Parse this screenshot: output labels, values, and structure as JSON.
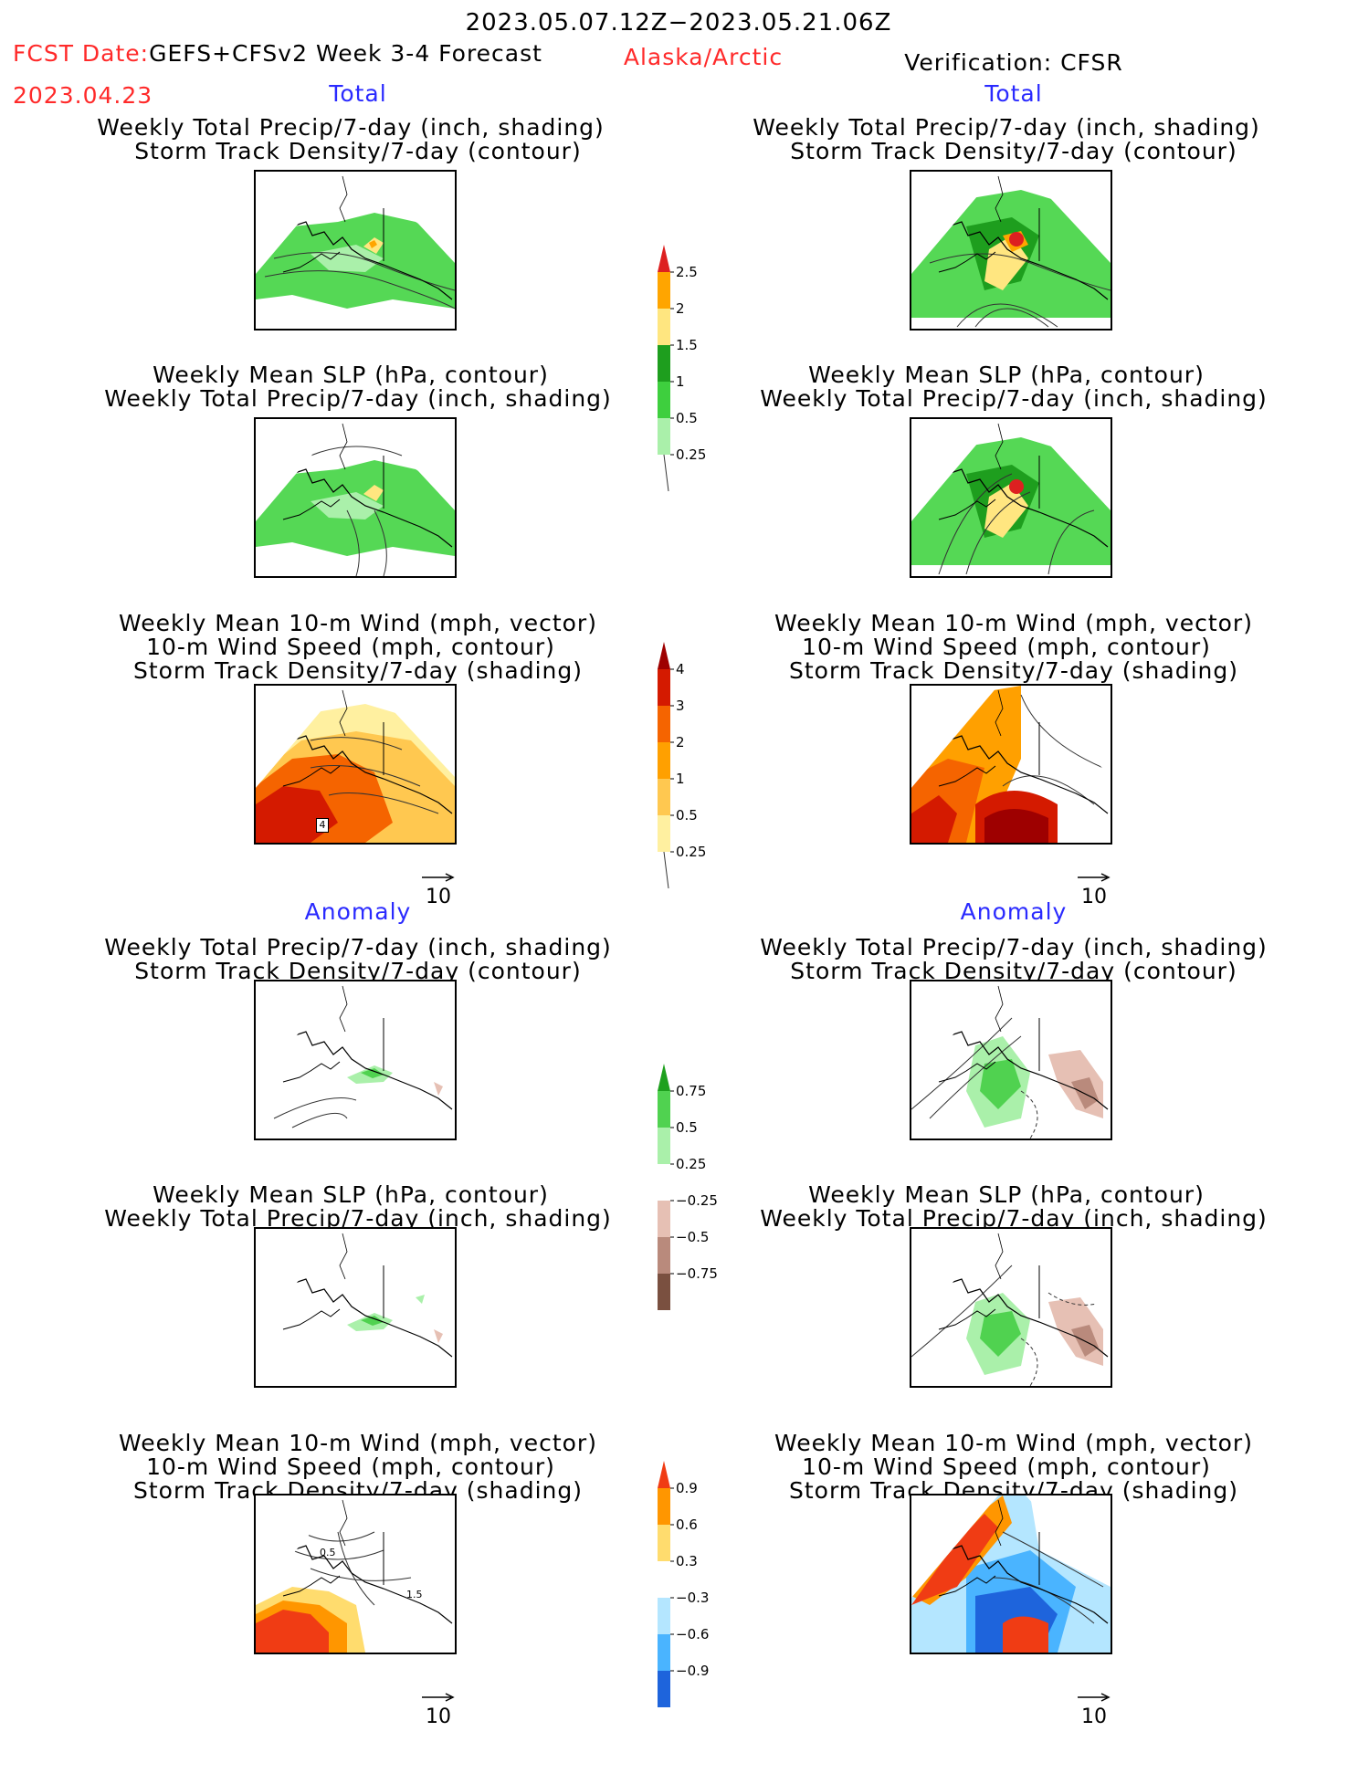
{
  "header": {
    "period": "2023.05.07.12Z−2023.05.21.06Z",
    "fcst_label": "FCST Date:",
    "fcst_model": "GEFS+CFSv2 Week 3-4 Forecast",
    "fcst_date": "2023.04.23",
    "region": "Alaska/Arctic",
    "verification": "Verification: CFSR"
  },
  "sections": {
    "total": "Total",
    "anomaly": "Anomaly"
  },
  "titles": {
    "precip_storm": [
      "Weekly Total Precip/7-day (inch, shading)",
      "Storm Track Density/7-day (contour)"
    ],
    "slp_precip": [
      "Weekly Mean SLP (hPa, contour)",
      "Weekly Total Precip/7-day (inch, shading)"
    ],
    "wind": [
      "Weekly Mean 10-m Wind (mph, vector)",
      "10-m Wind Speed (mph, contour)",
      "Storm Track Density/7-day (shading)"
    ]
  },
  "vector_reference": "10",
  "colorbars": {
    "precip_total": {
      "labels": [
        "2.5",
        "2",
        "1.5",
        "1",
        "0.5",
        "0.25"
      ],
      "colors": [
        "#dd2020",
        "#ffa500",
        "#ffe680",
        "#1e9e1e",
        "#3ecf3e",
        "#aaf0aa"
      ]
    },
    "storm_total": {
      "labels": [
        "4",
        "3",
        "2",
        "1",
        "0.5",
        "0.25"
      ],
      "colors": [
        "#9e0000",
        "#d41a00",
        "#f56400",
        "#ffa000",
        "#ffc850",
        "#fff0a0"
      ]
    },
    "precip_anom": {
      "labels": [
        "0.75",
        "0.5",
        "0.25",
        "−0.25",
        "−0.5",
        "−0.75"
      ],
      "colors": [
        "#1ea01e",
        "#50d250",
        "#aaf0aa",
        "#ffffff",
        "#e6c0b4",
        "#b98a7c",
        "#7a5040"
      ]
    },
    "storm_anom": {
      "labels": [
        "0.9",
        "0.6",
        "0.3",
        "−0.3",
        "−0.6",
        "−0.9"
      ],
      "colors": [
        "#f03c14",
        "#ff9600",
        "#ffdc6e",
        "#ffffff",
        "#b4e6ff",
        "#4ab4ff",
        "#1e64dc"
      ]
    }
  },
  "panel_labels": {
    "total_wind_left": "4",
    "anom_wind_left_a": "0.5",
    "anom_wind_left_b": "1.5"
  }
}
